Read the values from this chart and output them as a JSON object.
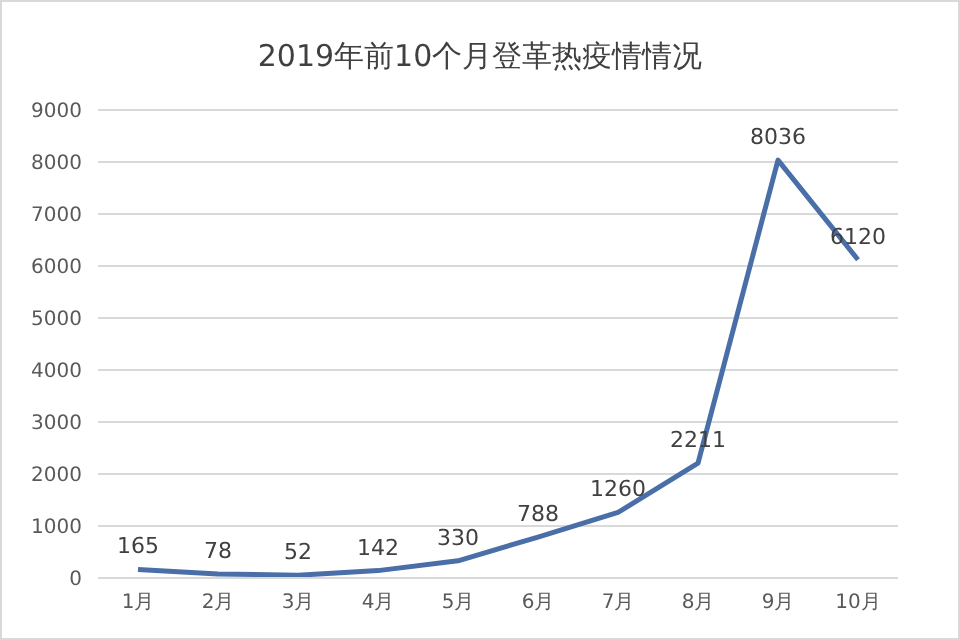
{
  "chart_data": {
    "type": "line",
    "title": "2019年前10个月登革热疫情情况",
    "categories": [
      "1月",
      "2月",
      "3月",
      "4月",
      "5月",
      "6月",
      "7月",
      "8月",
      "9月",
      "10月"
    ],
    "series": [
      {
        "color": "#4a6ea8",
        "values": [
          165,
          78,
          52,
          142,
          330,
          788,
          1260,
          2211,
          8036,
          6120
        ]
      }
    ],
    "ylim": [
      0,
      9000
    ],
    "yticks": [
      0,
      1000,
      2000,
      3000,
      4000,
      5000,
      6000,
      7000,
      8000,
      9000
    ],
    "grid": "y",
    "legend": false,
    "marker": "none",
    "line_style": "solid",
    "data_labels": true
  }
}
